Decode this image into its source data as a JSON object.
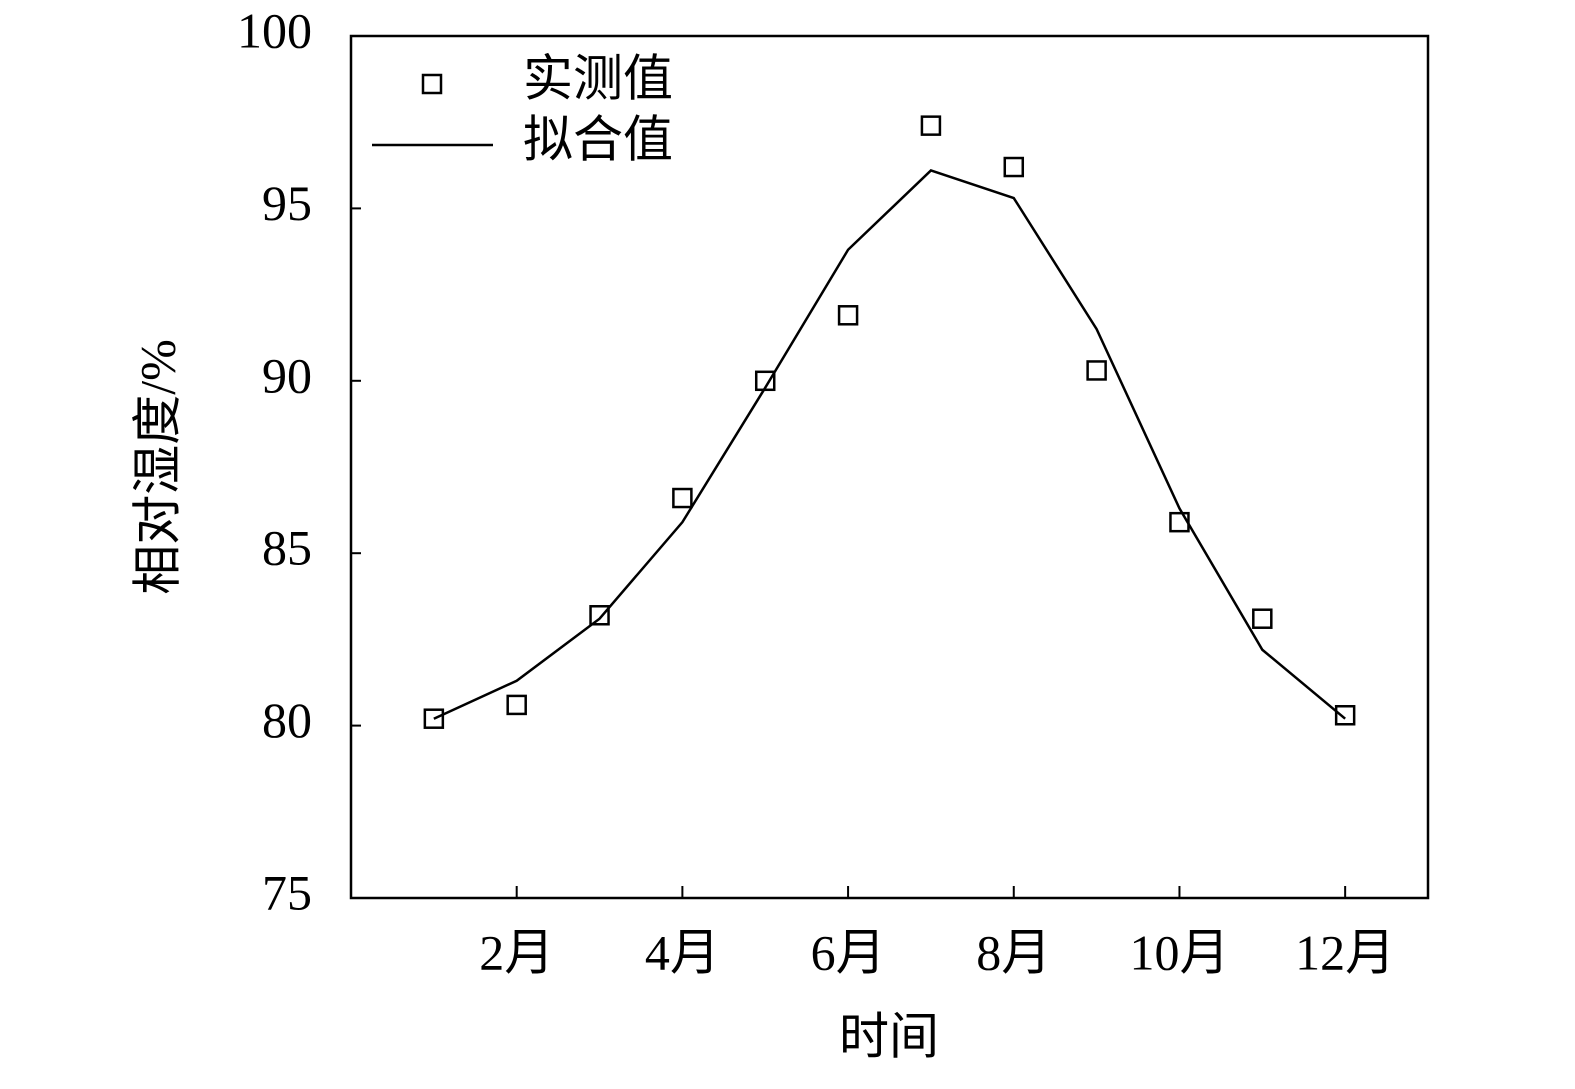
{
  "chart_data": {
    "type": "line",
    "xlabel": "时间",
    "ylabel": "相对湿度/%",
    "x": [
      1,
      2,
      3,
      4,
      5,
      6,
      7,
      8,
      9,
      10,
      11,
      12
    ],
    "xlim": [
      0,
      13
    ],
    "xticks": [
      {
        "value": 2,
        "label": "2月"
      },
      {
        "value": 4,
        "label": "4月"
      },
      {
        "value": 6,
        "label": "6月"
      },
      {
        "value": 8,
        "label": "8月"
      },
      {
        "value": 10,
        "label": "10月"
      },
      {
        "value": 12,
        "label": "12月"
      }
    ],
    "ylim": [
      75,
      100
    ],
    "yticks": [
      75,
      80,
      85,
      90,
      95,
      100
    ],
    "grid": false,
    "legend": "upper left",
    "series": [
      {
        "name": "实测值",
        "color": "#000000",
        "marker": "square",
        "line": false,
        "values": [
          80.2,
          80.6,
          83.2,
          86.6,
          90.0,
          91.9,
          97.4,
          96.2,
          90.3,
          85.9,
          83.1,
          80.3
        ]
      },
      {
        "name": "拟合值",
        "color": "#000000",
        "marker": "none",
        "line": true,
        "values": [
          80.2,
          81.3,
          83.1,
          85.9,
          89.8,
          93.8,
          96.1,
          95.3,
          91.5,
          86.3,
          82.2,
          80.2
        ]
      }
    ]
  }
}
